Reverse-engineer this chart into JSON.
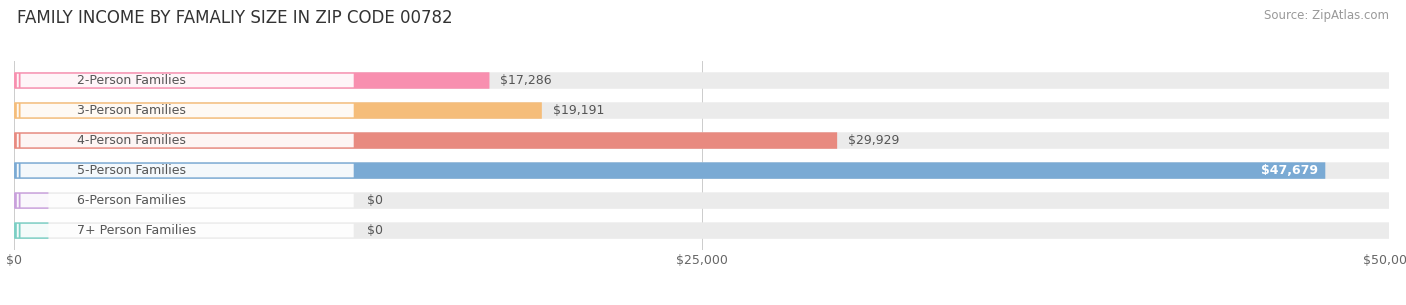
{
  "title": "FAMILY INCOME BY FAMALIY SIZE IN ZIP CODE 00782",
  "source": "Source: ZipAtlas.com",
  "categories": [
    "2-Person Families",
    "3-Person Families",
    "4-Person Families",
    "5-Person Families",
    "6-Person Families",
    "7+ Person Families"
  ],
  "values": [
    17286,
    19191,
    29929,
    47679,
    0,
    0
  ],
  "labels": [
    "$17,286",
    "$19,191",
    "$29,929",
    "$47,679",
    "$0",
    "$0"
  ],
  "bar_colors": [
    "#f88faf",
    "#f5bd7a",
    "#e88a80",
    "#7aaad4",
    "#c9a0dc",
    "#7bcfc4"
  ],
  "bar_bg_color": "#ebebeb",
  "xlim_data": [
    0,
    50000
  ],
  "xtick_labels": [
    "$0",
    "$25,000",
    "$50,000"
  ],
  "xtick_vals": [
    0,
    25000,
    50000
  ],
  "title_fontsize": 12,
  "source_fontsize": 8.5,
  "cat_fontsize": 9,
  "val_fontsize": 9,
  "bar_height": 0.55,
  "background_color": "#ffffff",
  "grid_color": "#cccccc",
  "label_pill_color": "#ffffff",
  "label_text_color": "#555555",
  "val_label_color_default": "#555555",
  "val_label_color_inside": "#ffffff"
}
